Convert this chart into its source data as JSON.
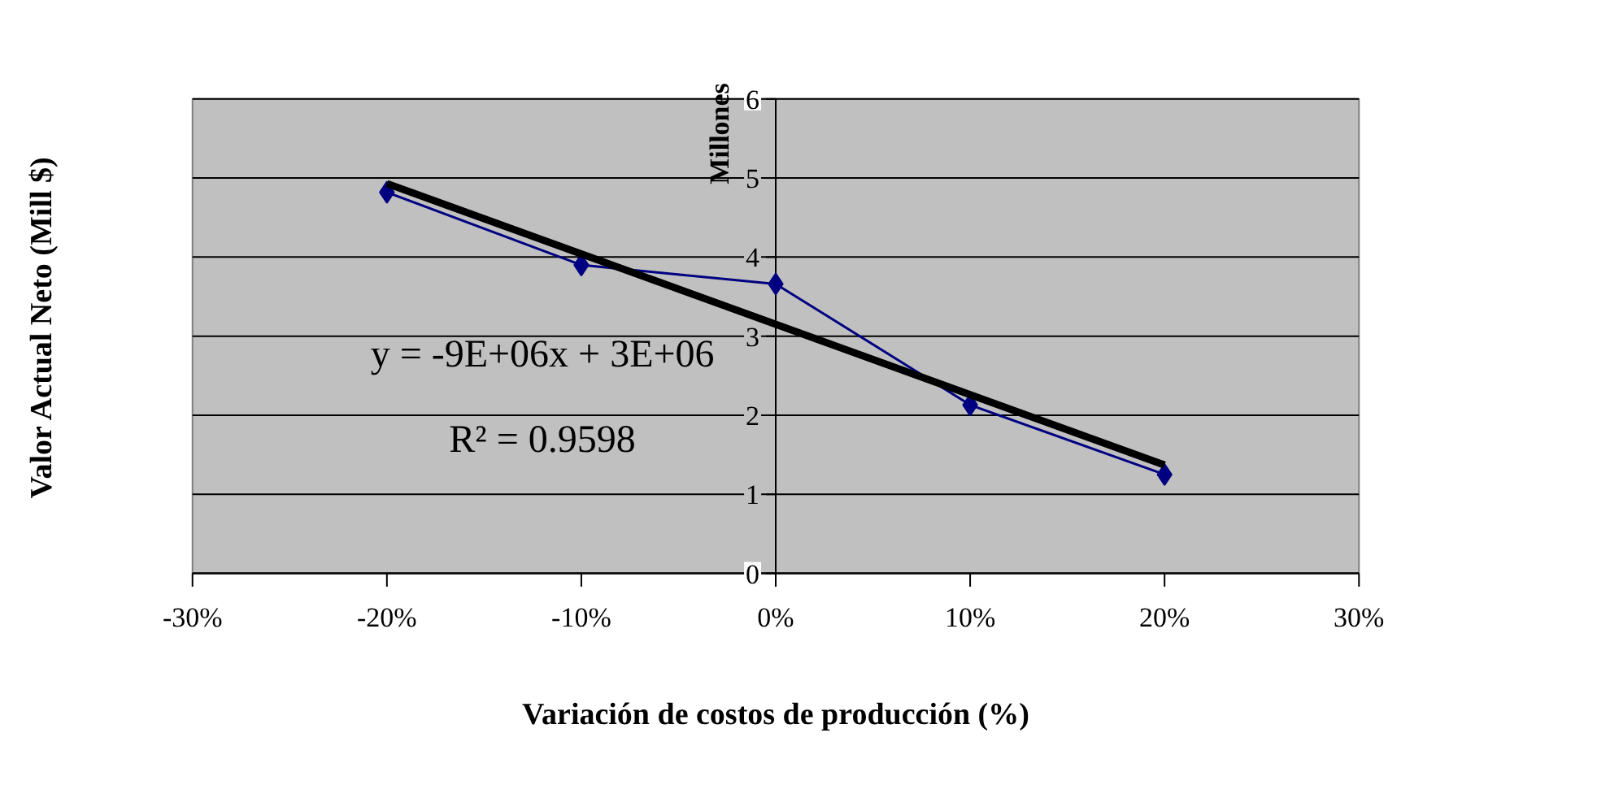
{
  "chart_data": {
    "type": "line",
    "xlabel": "Variación de costos de producción (%)",
    "ylabel": "Valor Actual Neto (Mill $)",
    "annotations": [
      "Millones",
      "y = -9E+06x + 3E+06",
      "R² = 0.9598"
    ],
    "x": [
      -20,
      -10,
      0,
      10,
      20
    ],
    "series": [
      {
        "color": "#000080",
        "values": [
          4.82,
          3.9,
          3.66,
          2.13,
          1.25
        ],
        "marker": "diamond"
      },
      {
        "type": "line",
        "color": "#000000",
        "x": [
          -20,
          20
        ],
        "values": [
          4.93,
          1.37
        ],
        "marker": "none"
      }
    ],
    "xlim": [
      -30,
      30
    ],
    "ylim": [
      0,
      6
    ],
    "xticks": [
      {
        "value": -30,
        "label": "-30%"
      },
      {
        "value": -20,
        "label": "-20%"
      },
      {
        "value": -10,
        "label": "-10%"
      },
      {
        "value": 0,
        "label": "0%"
      },
      {
        "value": 10,
        "label": "10%"
      },
      {
        "value": 20,
        "label": "20%"
      },
      {
        "value": 30,
        "label": "30%"
      }
    ],
    "yticks": [
      0,
      1,
      2,
      3,
      4,
      5,
      6
    ],
    "grid": "y"
  }
}
